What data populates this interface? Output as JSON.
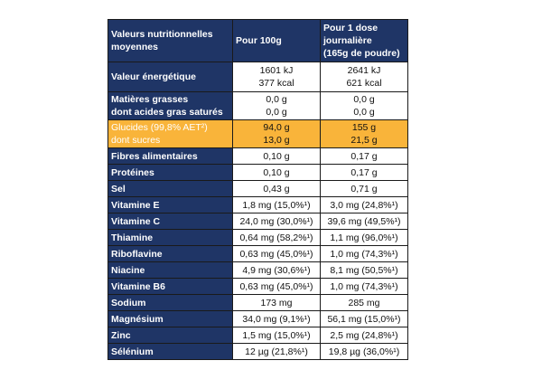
{
  "header": {
    "col1": [
      "Valeurs nutritionnelles",
      "moyennes"
    ],
    "col2": "Pour 100g",
    "col3": [
      "Pour 1 dose",
      "journalière",
      "(165g de poudre)"
    ]
  },
  "energy": {
    "label": "Valeur énergétique",
    "per100": [
      "1601 kJ",
      "377 kcal"
    ],
    "perDose": [
      "2641 kJ",
      "621 kcal"
    ]
  },
  "fats": {
    "labels": [
      "Matières grasses",
      "dont acides gras saturés"
    ],
    "per100": [
      "0,0 g",
      "0,0 g"
    ],
    "perDose": [
      "0,0 g",
      "0,0 g"
    ]
  },
  "carbs": {
    "labels": [
      "Glucides (99,8% AET²)",
      "dont sucres"
    ],
    "per100": [
      "94,0 g",
      "13,0 g"
    ],
    "perDose": [
      "155 g",
      "21,5 g"
    ],
    "highlight_color": "#f9b43a"
  },
  "rows": [
    {
      "label": "Fibres alimentaires",
      "per100": "0,10 g",
      "perDose": "0,17 g"
    },
    {
      "label": "Protéines",
      "per100": "0,10 g",
      "perDose": "0,17 g"
    },
    {
      "label": "Sel",
      "per100": "0,43 g",
      "perDose": "0,71 g"
    },
    {
      "label": "Vitamine E",
      "per100": "1,8 mg (15,0%¹)",
      "perDose": "3,0 mg (24,8%¹)"
    },
    {
      "label": "Vitamine C",
      "per100": "24,0 mg (30,0%¹)",
      "perDose": "39,6 mg (49,5%¹)"
    },
    {
      "label": "Thiamine",
      "per100": "0,64 mg (58,2%¹)",
      "perDose": "1,1 mg (96,0%¹)"
    },
    {
      "label": "Riboflavine",
      "per100": "0,63 mg (45,0%¹)",
      "perDose": "1,0 mg (74,3%¹)"
    },
    {
      "label": "Niacine",
      "per100": "4,9 mg (30,6%¹)",
      "perDose": "8,1 mg (50,5%¹)"
    },
    {
      "label": "Vitamine B6",
      "per100": "0,63 mg (45,0%¹)",
      "perDose": "1,0 mg (74,3%¹)"
    },
    {
      "label": "Sodium",
      "per100": "173 mg",
      "perDose": "285 mg"
    },
    {
      "label": "Magnésium",
      "per100": "34,0 mg (9,1%¹)",
      "perDose": "56,1 mg (15,0%¹)"
    },
    {
      "label": "Zinc",
      "per100": "1,5 mg (15,0%¹)",
      "perDose": "2,5 mg (24,8%¹)"
    },
    {
      "label": "Sélénium",
      "per100": "12 µg (21,8%¹)",
      "perDose": "19,8 µg (36,0%¹)"
    }
  ],
  "colors": {
    "header_bg": "#1f3566",
    "header_text": "#ffffff",
    "cell_bg": "#ffffff"
  }
}
